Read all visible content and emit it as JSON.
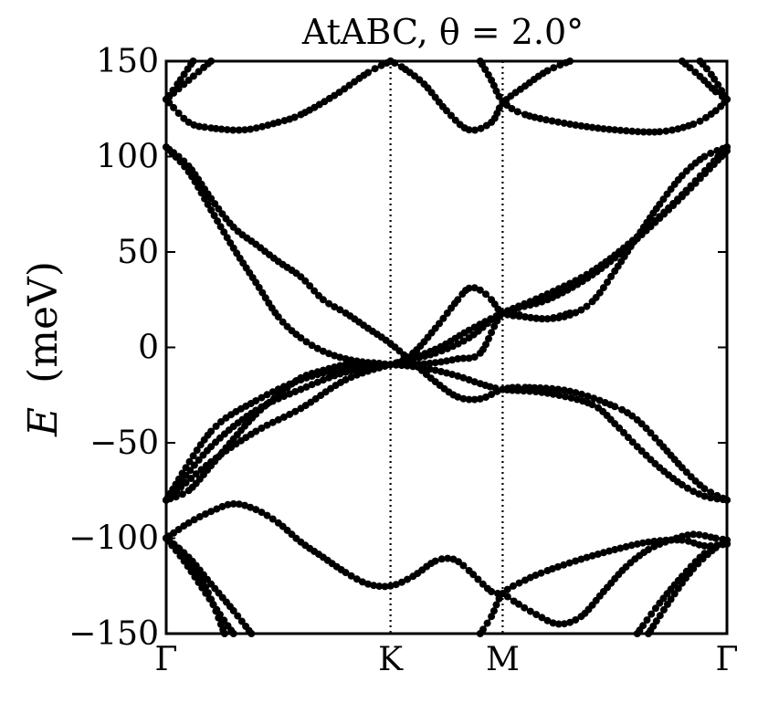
{
  "chart_data": {
    "type": "scatter",
    "title": "AtABC, θ = 2.0°",
    "ylabel_symbol": "E",
    "ylabel_unit": "(meV)",
    "xlabel": "",
    "x_ticks": [
      "Γ",
      "K",
      "M",
      "Γ"
    ],
    "x_tick_positions": [
      0,
      1,
      1.5,
      2.5
    ],
    "xlim": [
      0,
      2.5
    ],
    "ylim": [
      -150,
      150
    ],
    "y_ticks": [
      150,
      100,
      50,
      0,
      -50,
      -100,
      -150
    ],
    "y_tick_labels": [
      "150",
      "100",
      "50",
      "0",
      "−50",
      "−100",
      "−150"
    ],
    "grid": false,
    "vertical_dotted_lines_at": [
      0,
      1,
      1.5,
      2.5
    ],
    "marker_color": "#000000",
    "series": [
      {
        "points": [
          [
            0,
            -80
          ],
          [
            0.2,
            -52
          ],
          [
            0.4,
            -33
          ],
          [
            0.6,
            -22
          ],
          [
            0.8,
            -13
          ],
          [
            1.0,
            -9
          ],
          [
            1.2,
            -1
          ],
          [
            1.35,
            9
          ],
          [
            1.5,
            18
          ],
          [
            1.7,
            28
          ],
          [
            1.9,
            40
          ],
          [
            2.1,
            58
          ],
          [
            2.3,
            80
          ],
          [
            2.5,
            105
          ]
        ]
      },
      {
        "points": [
          [
            0,
            -80
          ],
          [
            0.2,
            -60
          ],
          [
            0.4,
            -44
          ],
          [
            0.6,
            -32
          ],
          [
            0.8,
            -17
          ],
          [
            1.0,
            -9
          ],
          [
            1.2,
            -3
          ],
          [
            1.35,
            5
          ],
          [
            1.5,
            18
          ],
          [
            1.7,
            25
          ],
          [
            1.9,
            38
          ],
          [
            2.1,
            57
          ],
          [
            2.3,
            79
          ],
          [
            2.5,
            103
          ]
        ]
      },
      {
        "points": [
          [
            0,
            105
          ],
          [
            0.1,
            95
          ],
          [
            0.2,
            78
          ],
          [
            0.3,
            63
          ],
          [
            0.4,
            54
          ],
          [
            0.5,
            45
          ],
          [
            0.6,
            37
          ],
          [
            0.7,
            25
          ],
          [
            0.8,
            18
          ],
          [
            0.9,
            10
          ],
          [
            1.0,
            2
          ],
          [
            1.1,
            -8
          ],
          [
            1.2,
            -18
          ],
          [
            1.3,
            -26
          ],
          [
            1.4,
            -27
          ],
          [
            1.5,
            -22
          ],
          [
            1.6,
            -21
          ],
          [
            1.8,
            -23
          ],
          [
            2.0,
            -31
          ],
          [
            2.1,
            -38
          ],
          [
            2.2,
            -50
          ],
          [
            2.3,
            -63
          ],
          [
            2.4,
            -74
          ],
          [
            2.5,
            -80
          ]
        ]
      },
      {
        "points": [
          [
            0,
            105
          ],
          [
            0.1,
            92
          ],
          [
            0.2,
            72
          ],
          [
            0.3,
            52
          ],
          [
            0.4,
            34
          ],
          [
            0.5,
            16
          ],
          [
            0.6,
            5
          ],
          [
            0.7,
            -2
          ],
          [
            0.8,
            -6
          ],
          [
            0.9,
            -8
          ],
          [
            1.0,
            -9
          ],
          [
            1.1,
            -9
          ],
          [
            1.2,
            -8
          ],
          [
            1.3,
            -6
          ],
          [
            1.4,
            -3
          ],
          [
            1.5,
            18
          ],
          [
            1.6,
            16
          ],
          [
            1.7,
            15
          ],
          [
            1.8,
            17
          ],
          [
            1.9,
            24
          ],
          [
            2.0,
            40
          ],
          [
            2.1,
            58
          ],
          [
            2.2,
            75
          ],
          [
            2.3,
            90
          ],
          [
            2.4,
            100
          ],
          [
            2.5,
            105
          ]
        ]
      },
      {
        "points": [
          [
            0,
            -80
          ],
          [
            0.2,
            -44
          ],
          [
            0.4,
            -28
          ],
          [
            0.6,
            -17
          ],
          [
            0.8,
            -11
          ],
          [
            1.0,
            -9
          ],
          [
            1.1,
            -3
          ],
          [
            1.2,
            10
          ],
          [
            1.3,
            25
          ],
          [
            1.35,
            31
          ],
          [
            1.4,
            30
          ],
          [
            1.45,
            25
          ],
          [
            1.5,
            18
          ],
          [
            1.6,
            16
          ],
          [
            1.7,
            15
          ],
          [
            1.8,
            18
          ]
        ]
      },
      {
        "points": [
          [
            0,
            -80
          ],
          [
            0.1,
            -75
          ],
          [
            0.2,
            -62
          ],
          [
            0.3,
            -48
          ],
          [
            0.4,
            -35
          ],
          [
            0.5,
            -25
          ],
          [
            0.6,
            -16
          ],
          [
            0.7,
            -12
          ],
          [
            0.8,
            -9
          ],
          [
            0.9,
            -8
          ],
          [
            1.0,
            -9
          ],
          [
            1.1,
            -10
          ],
          [
            1.2,
            -12
          ],
          [
            1.3,
            -15
          ],
          [
            1.4,
            -19
          ],
          [
            1.5,
            -22
          ],
          [
            1.7,
            -24
          ],
          [
            1.9,
            -30
          ],
          [
            2.0,
            -40
          ],
          [
            2.1,
            -52
          ],
          [
            2.2,
            -63
          ],
          [
            2.3,
            -72
          ],
          [
            2.4,
            -78
          ],
          [
            2.5,
            -80
          ]
        ]
      },
      {
        "points": [
          [
            0,
            130
          ],
          [
            0.1,
            118
          ],
          [
            0.2,
            115
          ],
          [
            0.35,
            114
          ],
          [
            0.5,
            118
          ],
          [
            0.6,
            122
          ],
          [
            0.75,
            132
          ],
          [
            0.9,
            144
          ],
          [
            1.0,
            150
          ]
        ]
      },
      {
        "points": [
          [
            0,
            130
          ],
          [
            0.1,
            140
          ],
          [
            0.2,
            150
          ]
        ]
      },
      {
        "points": [
          [
            0,
            130
          ],
          [
            0.05,
            138
          ],
          [
            0.12,
            150
          ]
        ]
      },
      {
        "points": [
          [
            1.0,
            150
          ],
          [
            1.05,
            147
          ],
          [
            1.15,
            138
          ],
          [
            1.25,
            124
          ],
          [
            1.35,
            114
          ],
          [
            1.45,
            118
          ],
          [
            1.5,
            128
          ],
          [
            1.6,
            137
          ],
          [
            1.7,
            145
          ],
          [
            1.8,
            150
          ]
        ]
      },
      {
        "points": [
          [
            1.4,
            150
          ],
          [
            1.45,
            140
          ],
          [
            1.5,
            129
          ],
          [
            1.6,
            122
          ],
          [
            1.8,
            117
          ],
          [
            2.0,
            114
          ],
          [
            2.2,
            113
          ],
          [
            2.35,
            117
          ],
          [
            2.45,
            124
          ],
          [
            2.5,
            130
          ]
        ]
      },
      {
        "points": [
          [
            2.3,
            150
          ],
          [
            2.38,
            142
          ],
          [
            2.45,
            134
          ],
          [
            2.5,
            130
          ]
        ]
      },
      {
        "points": [
          [
            2.38,
            150
          ],
          [
            2.43,
            143
          ],
          [
            2.5,
            130
          ]
        ]
      },
      {
        "points": [
          [
            0,
            -100
          ],
          [
            0.1,
            -92
          ],
          [
            0.2,
            -86
          ],
          [
            0.3,
            -82
          ],
          [
            0.4,
            -85
          ],
          [
            0.5,
            -92
          ],
          [
            0.6,
            -102
          ],
          [
            0.7,
            -110
          ],
          [
            0.8,
            -118
          ],
          [
            0.9,
            -124
          ],
          [
            1.0,
            -125
          ],
          [
            1.1,
            -120
          ],
          [
            1.2,
            -112
          ],
          [
            1.28,
            -111
          ],
          [
            1.35,
            -117
          ],
          [
            1.45,
            -128
          ],
          [
            1.5,
            -129
          ],
          [
            1.55,
            -133
          ],
          [
            1.65,
            -140
          ],
          [
            1.75,
            -145
          ],
          [
            1.85,
            -141
          ],
          [
            1.95,
            -128
          ],
          [
            2.05,
            -115
          ],
          [
            2.15,
            -106
          ],
          [
            2.25,
            -101
          ],
          [
            2.35,
            -98
          ],
          [
            2.45,
            -100
          ],
          [
            2.5,
            -101
          ]
        ]
      },
      {
        "points": [
          [
            0,
            -100
          ],
          [
            0.1,
            -110
          ],
          [
            0.2,
            -124
          ],
          [
            0.3,
            -138
          ],
          [
            0.38,
            -150
          ]
        ]
      },
      {
        "points": [
          [
            0,
            -100
          ],
          [
            0.08,
            -112
          ],
          [
            0.16,
            -126
          ],
          [
            0.24,
            -140
          ],
          [
            0.3,
            -150
          ]
        ]
      },
      {
        "points": [
          [
            0,
            -100
          ],
          [
            0.08,
            -108
          ],
          [
            0.15,
            -120
          ],
          [
            0.2,
            -132
          ],
          [
            0.26,
            -150
          ]
        ]
      },
      {
        "points": [
          [
            1.4,
            -150
          ],
          [
            1.45,
            -141
          ],
          [
            1.5,
            -129
          ],
          [
            1.6,
            -122
          ],
          [
            1.7,
            -117
          ],
          [
            1.85,
            -111
          ],
          [
            2.0,
            -106
          ],
          [
            2.15,
            -102
          ],
          [
            2.3,
            -101
          ],
          [
            2.4,
            -104
          ],
          [
            2.5,
            -103
          ]
        ]
      },
      {
        "points": [
          [
            2.1,
            -150
          ],
          [
            2.2,
            -134
          ],
          [
            2.3,
            -120
          ],
          [
            2.4,
            -108
          ],
          [
            2.5,
            -101
          ]
        ]
      },
      {
        "points": [
          [
            2.15,
            -150
          ],
          [
            2.25,
            -132
          ],
          [
            2.35,
            -116
          ],
          [
            2.45,
            -105
          ],
          [
            2.5,
            -103
          ]
        ]
      }
    ]
  }
}
